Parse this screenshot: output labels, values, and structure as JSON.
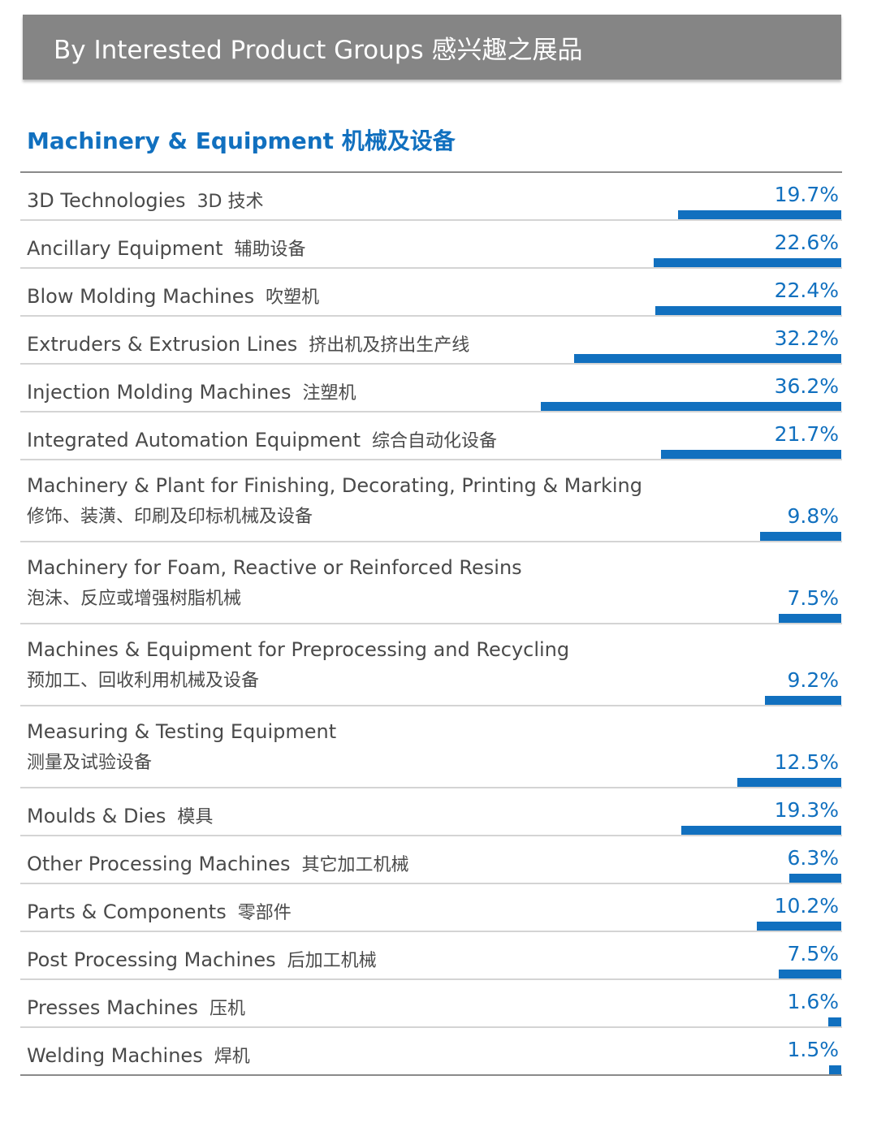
{
  "header": {
    "title": "By Interested Product Groups  感兴趣之展品"
  },
  "section": {
    "title": "Machinery & Equipment  机械及设备"
  },
  "chart_data": {
    "type": "bar",
    "orientation": "horizontal",
    "unit": "%",
    "max_value": 36.2,
    "categories": [
      {
        "en": "3D Technologies",
        "zh": "3D 技术",
        "value": 19.7,
        "label": "19.7%"
      },
      {
        "en": "Ancillary Equipment",
        "zh": "辅助设备",
        "value": 22.6,
        "label": "22.6%"
      },
      {
        "en": "Blow Molding Machines",
        "zh": "吹塑机",
        "value": 22.4,
        "label": "22.4%"
      },
      {
        "en": "Extruders & Extrusion Lines",
        "zh": "挤出机及挤出生产线",
        "value": 32.2,
        "label": "32.2%"
      },
      {
        "en": "Injection Molding Machines",
        "zh": "注塑机",
        "value": 36.2,
        "label": "36.2%"
      },
      {
        "en": "Integrated Automation Equipment",
        "zh": "综合自动化设备",
        "value": 21.7,
        "label": "21.7%"
      },
      {
        "en": "Machinery & Plant for Finishing, Decorating, Printing & Marking",
        "zh": "修饰、装潢、印刷及印标机械及设备",
        "value": 9.8,
        "label": "9.8%",
        "two_line": true
      },
      {
        "en": "Machinery for Foam, Reactive or Reinforced Resins",
        "zh": "泡沫、反应或增强树脂机械",
        "value": 7.5,
        "label": "7.5%",
        "two_line": true
      },
      {
        "en": "Machines & Equipment for Preprocessing and Recycling",
        "zh": "预加工、回收利用机械及设备",
        "value": 9.2,
        "label": "9.2%",
        "two_line": true
      },
      {
        "en": "Measuring & Testing Equipment",
        "zh": "测量及试验设备",
        "value": 12.5,
        "label": "12.5%",
        "two_line": true
      },
      {
        "en": "Moulds & Dies",
        "zh": "模具",
        "value": 19.3,
        "label": "19.3%"
      },
      {
        "en": "Other Processing Machines",
        "zh": "其它加工机械",
        "value": 6.3,
        "label": "6.3%"
      },
      {
        "en": "Parts & Components",
        "zh": "零部件",
        "value": 10.2,
        "label": "10.2%"
      },
      {
        "en": "Post Processing Machines",
        "zh": "后加工机械",
        "value": 7.5,
        "label": "7.5%"
      },
      {
        "en": "Presses Machines",
        "zh": "压机",
        "value": 1.6,
        "label": "1.6%"
      },
      {
        "en": "Welding Machines",
        "zh": "焊机",
        "value": 1.5,
        "label": "1.5%"
      }
    ]
  },
  "colors": {
    "accent": "#1170bf",
    "header_bg": "#858585",
    "text": "#4a4a4a"
  }
}
